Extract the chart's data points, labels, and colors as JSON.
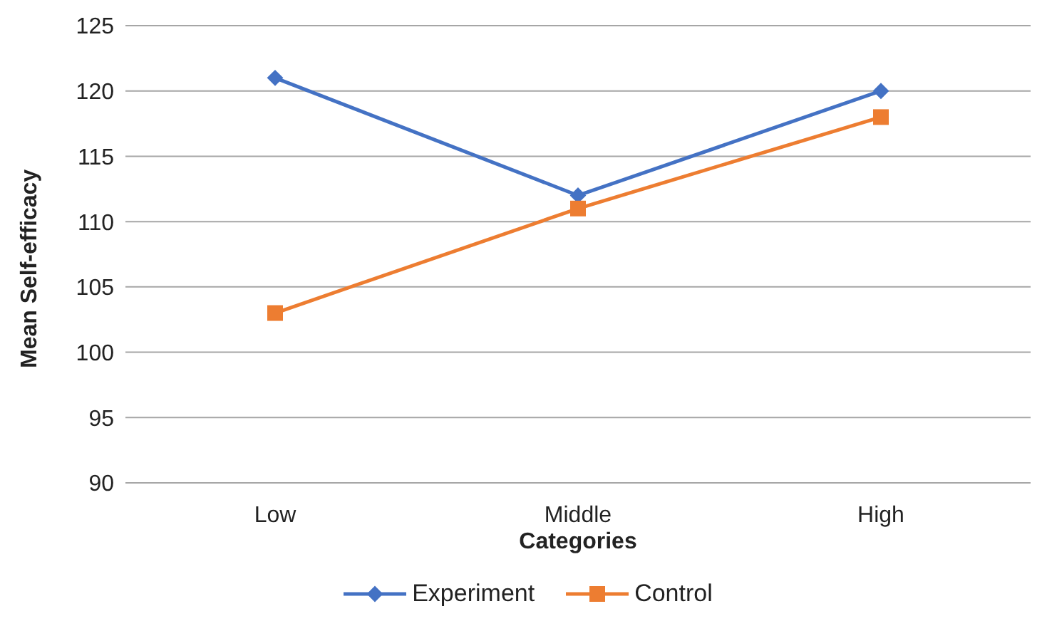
{
  "chart_data": {
    "type": "line",
    "xlabel": "Categories",
    "ylabel": "Mean Self-efficacy",
    "categories": [
      "Low",
      "Middle",
      "High"
    ],
    "series": [
      {
        "name": "Experiment",
        "color": "#4472c4",
        "values": [
          121,
          112,
          120
        ],
        "marker": "diamond"
      },
      {
        "name": "Control",
        "color": "#ed7d31",
        "values": [
          103,
          111,
          118
        ],
        "marker": "square"
      }
    ],
    "ylim": [
      90,
      125
    ],
    "yticks": [
      90,
      95,
      100,
      105,
      110,
      115,
      120,
      125
    ],
    "grid": "y",
    "legend": "bottom",
    "line_style": "solid"
  }
}
